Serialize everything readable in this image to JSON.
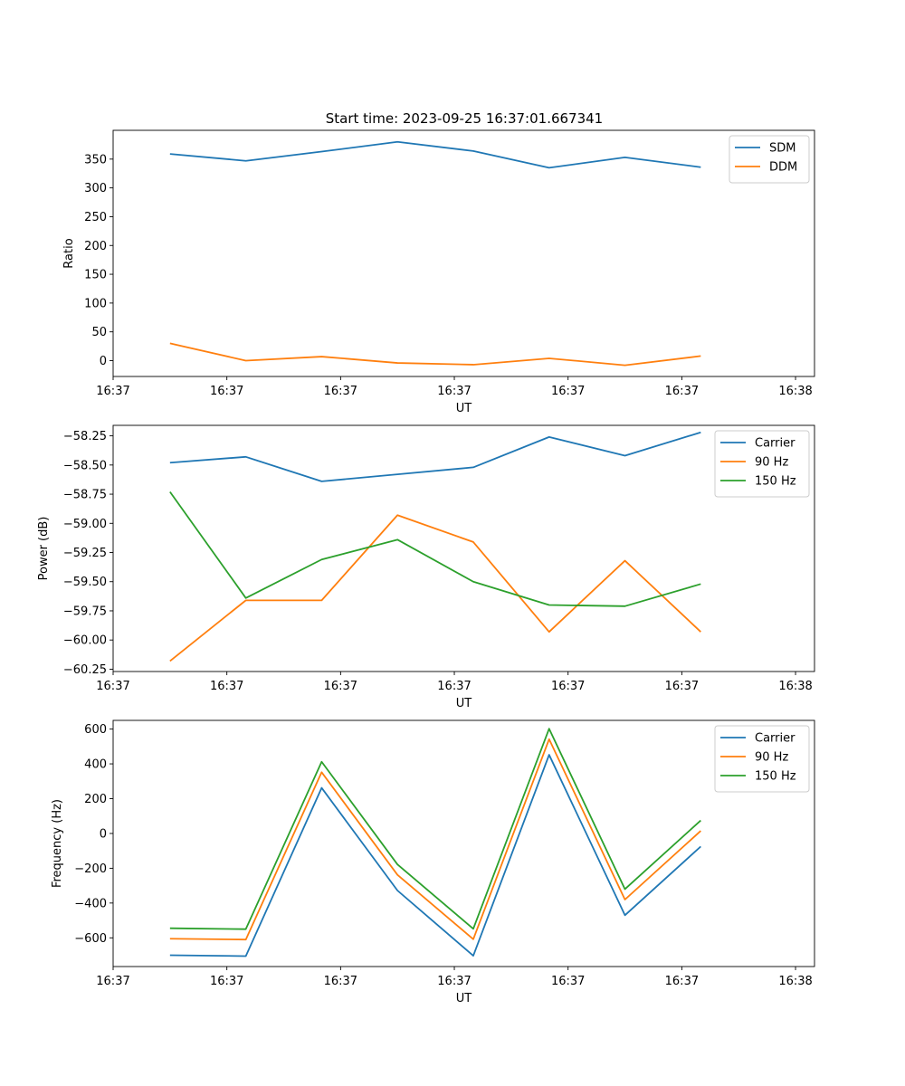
{
  "figure": {
    "title": "Start time: 2023-09-25 16:37:01.667341"
  },
  "colors": {
    "blue": "#1f77b4",
    "orange": "#ff7f0e",
    "green": "#2ca02c"
  },
  "chart_data": [
    {
      "type": "line",
      "xlabel": "UT",
      "ylabel": "Ratio",
      "xlim": [
        -0.75,
        8.5
      ],
      "ylim": [
        -27.5,
        400
      ],
      "x": [
        0,
        1,
        2,
        3,
        4,
        5,
        6,
        7
      ],
      "xticks": [
        -0.75,
        0.75,
        2.25,
        3.75,
        5.25,
        6.75,
        8.25
      ],
      "xtick_labels": [
        "16:37",
        "16:37",
        "16:37",
        "16:37",
        "16:37",
        "16:37",
        "16:38"
      ],
      "yticks": [
        0,
        50,
        100,
        150,
        200,
        250,
        300,
        350
      ],
      "ytick_labels": [
        "0",
        "50",
        "100",
        "150",
        "200",
        "250",
        "300",
        "350"
      ],
      "legend_position": "top-right",
      "series": [
        {
          "name": "SDM",
          "color_key": "blue",
          "values": [
            359,
            347,
            363,
            380,
            364,
            335,
            353,
            336
          ]
        },
        {
          "name": "DDM",
          "color_key": "orange",
          "values": [
            30,
            0,
            7,
            -4,
            -7,
            4,
            -8,
            8
          ]
        }
      ]
    },
    {
      "type": "line",
      "xlabel": "UT",
      "ylabel": "Power (dB)",
      "xlim": [
        -0.75,
        8.5
      ],
      "ylim": [
        -60.27,
        -58.16
      ],
      "x": [
        0,
        1,
        2,
        3,
        4,
        5,
        6,
        7
      ],
      "xticks": [
        -0.75,
        0.75,
        2.25,
        3.75,
        5.25,
        6.75,
        8.25
      ],
      "xtick_labels": [
        "16:37",
        "16:37",
        "16:37",
        "16:37",
        "16:37",
        "16:37",
        "16:38"
      ],
      "yticks": [
        -60.25,
        -60.0,
        -59.75,
        -59.5,
        -59.25,
        -59.0,
        -58.75,
        -58.5,
        -58.25
      ],
      "ytick_labels": [
        "−60.25",
        "−60.00",
        "−59.75",
        "−59.50",
        "−59.25",
        "−59.00",
        "−58.75",
        "−58.50",
        "−58.25"
      ],
      "legend_position": "top-right",
      "series": [
        {
          "name": "Carrier",
          "color_key": "blue",
          "values": [
            -58.48,
            -58.43,
            -58.64,
            -58.58,
            -58.52,
            -58.26,
            -58.42,
            -58.22
          ]
        },
        {
          "name": "90 Hz",
          "color_key": "orange",
          "values": [
            -60.18,
            -59.66,
            -59.66,
            -58.93,
            -59.16,
            -59.93,
            -59.32,
            -59.93
          ]
        },
        {
          "name": "150 Hz",
          "color_key": "green",
          "values": [
            -58.73,
            -59.64,
            -59.31,
            -59.14,
            -59.5,
            -59.7,
            -59.71,
            -59.52
          ]
        }
      ]
    },
    {
      "type": "line",
      "xlabel": "UT",
      "ylabel": "Frequency (Hz)",
      "xlim": [
        -0.75,
        8.5
      ],
      "ylim": [
        -765,
        650
      ],
      "x": [
        0,
        1,
        2,
        3,
        4,
        5,
        6,
        7
      ],
      "xticks": [
        -0.75,
        0.75,
        2.25,
        3.75,
        5.25,
        6.75,
        8.25
      ],
      "xtick_labels": [
        "16:37",
        "16:37",
        "16:37",
        "16:37",
        "16:37",
        "16:37",
        "16:38"
      ],
      "yticks": [
        -600,
        -400,
        -200,
        0,
        200,
        400,
        600
      ],
      "ytick_labels": [
        "−600",
        "−400",
        "−200",
        "0",
        "200",
        "400",
        "600"
      ],
      "legend_position": "top-right",
      "series": [
        {
          "name": "Carrier",
          "color_key": "blue",
          "values": [
            -700,
            -705,
            262,
            -328,
            -703,
            452,
            -470,
            -75
          ]
        },
        {
          "name": "90 Hz",
          "color_key": "orange",
          "values": [
            -605,
            -610,
            352,
            -238,
            -608,
            542,
            -380,
            15
          ]
        },
        {
          "name": "150 Hz",
          "color_key": "green",
          "values": [
            -545,
            -550,
            412,
            -178,
            -548,
            602,
            -320,
            75
          ]
        }
      ]
    }
  ]
}
